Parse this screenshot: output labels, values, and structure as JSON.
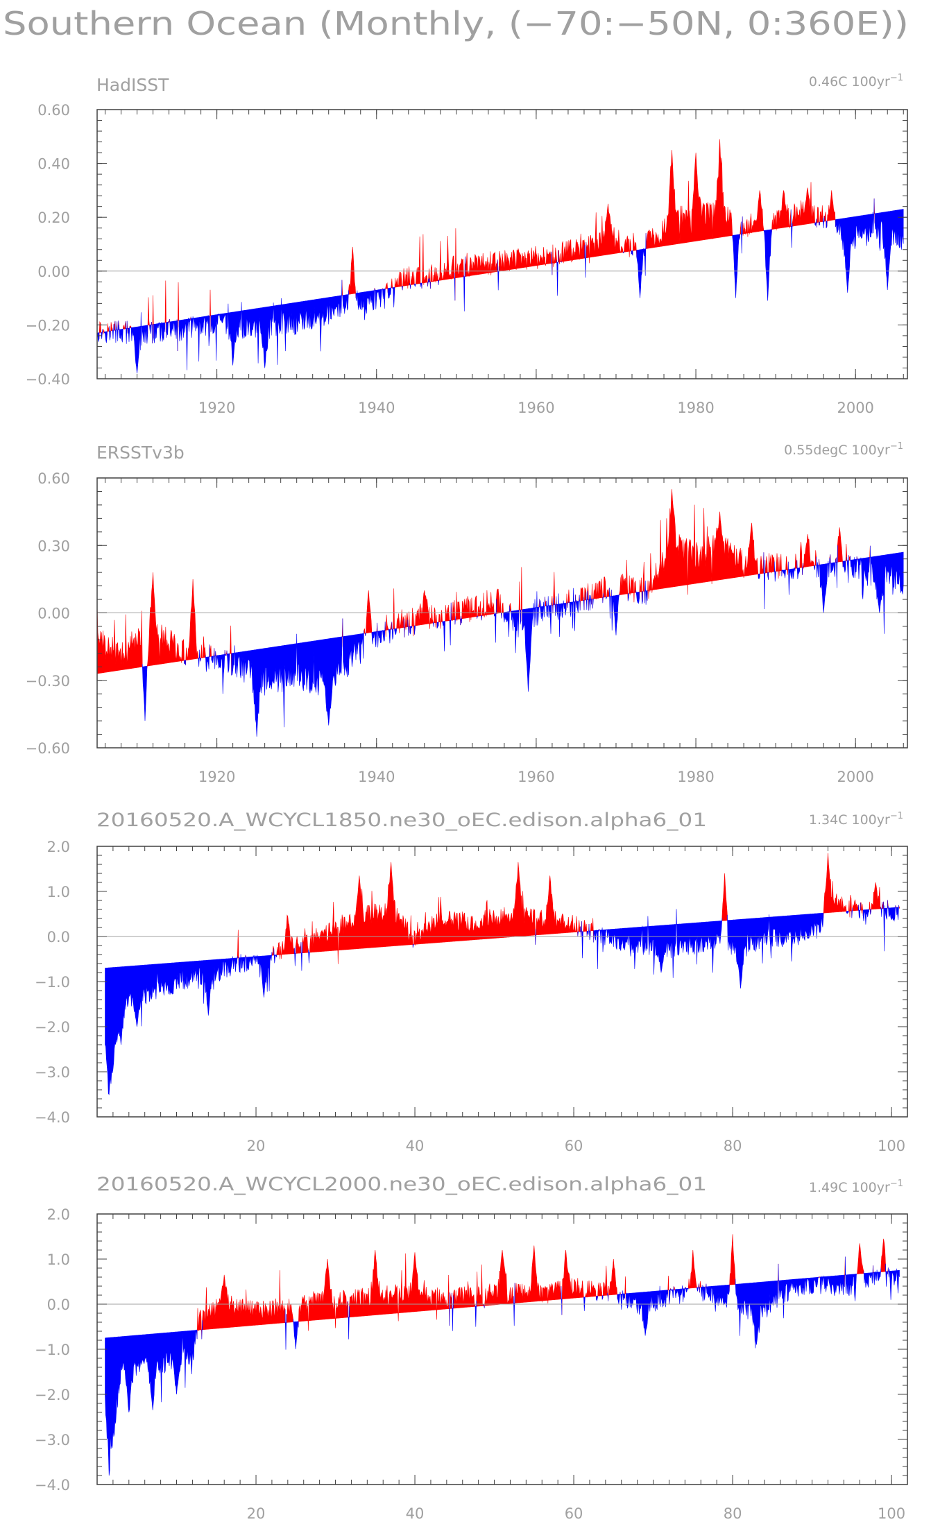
{
  "figure_title": "Southern Ocean (Monthly, (−70:−50N, 0:360E))",
  "colors": {
    "above": "#ff0000",
    "below": "#0000ff",
    "zero_line": "#a0a0a0",
    "axis": "#404040",
    "text": "#a0a0a0"
  },
  "chart_data": [
    {
      "type": "area",
      "title": "HadISST",
      "trend_label": "0.46C  100yr",
      "trend_unit_sup": "−1",
      "x_range": [
        1905,
        2006
      ],
      "xlim": [
        1905,
        2006.5
      ],
      "ylim": [
        -0.4,
        0.6
      ],
      "y_ticks": [
        -0.4,
        -0.2,
        0.0,
        0.2,
        0.4,
        0.6
      ],
      "y_tick_labels": [
        "−0.40",
        "−0.20",
        "0.00",
        "0.20",
        "0.40",
        "0.60"
      ],
      "x_ticks": [
        1920,
        1940,
        1960,
        1980,
        2000
      ],
      "x_tick_labels": [
        "1920",
        "1940",
        "1960",
        "1980",
        "2000"
      ],
      "minor_x_step": 2,
      "minor_y_step": 0.04,
      "trend_line": [
        [
          1905,
          -0.23
        ],
        [
          2006,
          0.23
        ]
      ],
      "anomaly_keypoints": [
        [
          1905,
          -0.22
        ],
        [
          1910,
          -0.23
        ],
        [
          1915,
          -0.22
        ],
        [
          1920,
          -0.2
        ],
        [
          1925,
          -0.21
        ],
        [
          1930,
          -0.19
        ],
        [
          1935,
          -0.15
        ],
        [
          1938,
          -0.12
        ],
        [
          1941,
          -0.1
        ],
        [
          1943,
          -0.03
        ],
        [
          1947,
          -0.02
        ],
        [
          1950,
          0.02
        ],
        [
          1955,
          0.03
        ],
        [
          1960,
          0.05
        ],
        [
          1965,
          0.08
        ],
        [
          1970,
          0.12
        ],
        [
          1972,
          0.1
        ],
        [
          1975,
          0.13
        ],
        [
          1978,
          0.2
        ],
        [
          1980,
          0.21
        ],
        [
          1983,
          0.22
        ],
        [
          1986,
          0.17
        ],
        [
          1990,
          0.18
        ],
        [
          1993,
          0.22
        ],
        [
          1996,
          0.2
        ],
        [
          1999,
          0.12
        ],
        [
          2003,
          0.15
        ],
        [
          2006,
          0.12
        ]
      ],
      "noise_amp": 0.09,
      "spikes": [
        [
          1937,
          0.09
        ],
        [
          1969,
          0.25
        ],
        [
          1977,
          0.45
        ],
        [
          1980,
          0.44
        ],
        [
          1983,
          0.49
        ],
        [
          1988,
          0.3
        ],
        [
          1991,
          0.3
        ],
        [
          1994,
          0.31
        ],
        [
          1997,
          0.3
        ],
        [
          1910,
          -0.38
        ],
        [
          1922,
          -0.35
        ],
        [
          1926,
          -0.36
        ],
        [
          1973,
          -0.1
        ],
        [
          1985,
          -0.1
        ],
        [
          1989,
          -0.11
        ],
        [
          1999,
          -0.08
        ],
        [
          2004,
          -0.07
        ]
      ]
    },
    {
      "type": "area",
      "title": "ERSSTv3b",
      "trend_label": "0.55degC  100yr",
      "trend_unit_sup": "−1",
      "x_range": [
        1905,
        2006
      ],
      "xlim": [
        1905,
        2006.5
      ],
      "ylim": [
        -0.6,
        0.6
      ],
      "y_ticks": [
        -0.6,
        -0.3,
        0.0,
        0.3,
        0.6
      ],
      "y_tick_labels": [
        "−0.60",
        "−0.30",
        "0.00",
        "0.30",
        "0.60"
      ],
      "x_ticks": [
        1920,
        1940,
        1960,
        1980,
        2000
      ],
      "x_tick_labels": [
        "1920",
        "1940",
        "1960",
        "1980",
        "2000"
      ],
      "minor_x_step": 2,
      "minor_y_step": 0.06,
      "trend_line": [
        [
          1905,
          -0.27
        ],
        [
          2006,
          0.27
        ]
      ],
      "anomaly_keypoints": [
        [
          1905,
          -0.12
        ],
        [
          1908,
          -0.2
        ],
        [
          1911,
          -0.08
        ],
        [
          1915,
          -0.15
        ],
        [
          1918,
          -0.2
        ],
        [
          1922,
          -0.22
        ],
        [
          1926,
          -0.3
        ],
        [
          1930,
          -0.28
        ],
        [
          1934,
          -0.32
        ],
        [
          1937,
          -0.2
        ],
        [
          1940,
          -0.1
        ],
        [
          1943,
          -0.05
        ],
        [
          1946,
          -0.02
        ],
        [
          1950,
          0.0
        ],
        [
          1955,
          0.05
        ],
        [
          1958,
          -0.05
        ],
        [
          1960,
          0.0
        ],
        [
          1965,
          0.05
        ],
        [
          1970,
          0.12
        ],
        [
          1974,
          0.1
        ],
        [
          1977,
          0.3
        ],
        [
          1980,
          0.25
        ],
        [
          1983,
          0.3
        ],
        [
          1986,
          0.22
        ],
        [
          1990,
          0.2
        ],
        [
          1994,
          0.22
        ],
        [
          1998,
          0.2
        ],
        [
          2002,
          0.18
        ],
        [
          2006,
          0.12
        ]
      ],
      "noise_amp": 0.13,
      "spikes": [
        [
          1912,
          0.18
        ],
        [
          1917,
          0.15
        ],
        [
          1939,
          0.1
        ],
        [
          1946,
          0.1
        ],
        [
          1977,
          0.55
        ],
        [
          1983,
          0.45
        ],
        [
          1987,
          0.4
        ],
        [
          1994,
          0.35
        ],
        [
          1998,
          0.38
        ],
        [
          1911,
          -0.48
        ],
        [
          1925,
          -0.55
        ],
        [
          1934,
          -0.5
        ],
        [
          1959,
          -0.35
        ],
        [
          1970,
          -0.1
        ],
        [
          1996,
          0.0
        ],
        [
          2003,
          0.0
        ]
      ]
    },
    {
      "type": "area",
      "title": "20160520.A_WCYCL1850.ne30_oEC.edison.alpha6_01",
      "trend_label": "1.34C  100yr",
      "trend_unit_sup": "−1",
      "x_range": [
        1,
        101
      ],
      "xlim": [
        0,
        102
      ],
      "ylim": [
        -4.0,
        2.0
      ],
      "y_ticks": [
        -4.0,
        -3.0,
        -2.0,
        -1.0,
        0.0,
        1.0,
        2.0
      ],
      "y_tick_labels": [
        "−4.0",
        "−3.0",
        "−2.0",
        "−1.0",
        "0.0",
        "1.0",
        "2.0"
      ],
      "x_ticks": [
        20,
        40,
        60,
        80,
        100
      ],
      "x_tick_labels": [
        "20",
        "40",
        "60",
        "80",
        "100"
      ],
      "minor_x_step": 2,
      "minor_y_step": 0.2,
      "trend_line": [
        [
          1,
          -0.7
        ],
        [
          101,
          0.65
        ]
      ],
      "anomaly_keypoints": [
        [
          1,
          -2.2
        ],
        [
          1.5,
          -3.5
        ],
        [
          3,
          -1.5
        ],
        [
          6,
          -1.3
        ],
        [
          9,
          -1.1
        ],
        [
          12,
          -0.9
        ],
        [
          15,
          -0.8
        ],
        [
          18,
          -0.6
        ],
        [
          21,
          -0.5
        ],
        [
          24,
          -0.2
        ],
        [
          27,
          -0.1
        ],
        [
          30,
          0.2
        ],
        [
          33,
          0.45
        ],
        [
          36,
          0.55
        ],
        [
          38,
          0.4
        ],
        [
          40,
          -0.1
        ],
        [
          43,
          0.4
        ],
        [
          46,
          0.3
        ],
        [
          50,
          0.4
        ],
        [
          53,
          0.5
        ],
        [
          56,
          0.4
        ],
        [
          59,
          0.35
        ],
        [
          62,
          0.1
        ],
        [
          65,
          -0.1
        ],
        [
          68,
          -0.2
        ],
        [
          71,
          -0.3
        ],
        [
          75,
          -0.2
        ],
        [
          78,
          -0.1
        ],
        [
          81,
          -0.3
        ],
        [
          84,
          -0.05
        ],
        [
          88,
          0.0
        ],
        [
          91,
          0.2
        ],
        [
          93,
          0.8
        ],
        [
          96,
          0.55
        ],
        [
          99,
          0.6
        ],
        [
          101,
          0.55
        ]
      ],
      "noise_amp": 0.45,
      "spikes": [
        [
          37,
          1.65
        ],
        [
          53,
          1.65
        ],
        [
          33,
          1.35
        ],
        [
          57,
          1.35
        ],
        [
          79,
          1.4
        ],
        [
          92,
          1.85
        ],
        [
          98,
          1.2
        ],
        [
          24,
          0.45
        ],
        [
          3,
          -2.4
        ],
        [
          5,
          -2.0
        ],
        [
          14,
          -1.75
        ],
        [
          21,
          -1.35
        ],
        [
          71,
          -0.8
        ],
        [
          81,
          -1.15
        ]
      ]
    },
    {
      "type": "area",
      "title": "20160520.A_WCYCL2000.ne30_oEC.edison.alpha6_01",
      "trend_label": "1.49C  100yr",
      "trend_unit_sup": "−1",
      "x_range": [
        1,
        101
      ],
      "xlim": [
        0,
        102
      ],
      "ylim": [
        -4.0,
        2.0
      ],
      "y_ticks": [
        -4.0,
        -3.0,
        -2.0,
        -1.0,
        0.0,
        1.0,
        2.0
      ],
      "y_tick_labels": [
        "−4.0",
        "−3.0",
        "−2.0",
        "−1.0",
        "0.0",
        "1.0",
        "2.0"
      ],
      "x_ticks": [
        20,
        40,
        60,
        80,
        100
      ],
      "x_tick_labels": [
        "20",
        "40",
        "60",
        "80",
        "100"
      ],
      "minor_x_step": 2,
      "minor_y_step": 0.2,
      "trend_line": [
        [
          1,
          -0.75
        ],
        [
          101,
          0.75
        ]
      ],
      "anomaly_keypoints": [
        [
          1,
          -2.0
        ],
        [
          1.5,
          -3.6
        ],
        [
          3,
          -1.5
        ],
        [
          6,
          -1.4
        ],
        [
          9,
          -1.3
        ],
        [
          12,
          -1.1
        ],
        [
          13,
          -0.3
        ],
        [
          16,
          0.0
        ],
        [
          20,
          -0.15
        ],
        [
          24,
          -0.1
        ],
        [
          28,
          0.1
        ],
        [
          32,
          0.1
        ],
        [
          36,
          0.2
        ],
        [
          40,
          0.25
        ],
        [
          44,
          0.15
        ],
        [
          48,
          0.2
        ],
        [
          52,
          0.3
        ],
        [
          56,
          0.2
        ],
        [
          60,
          0.4
        ],
        [
          64,
          0.25
        ],
        [
          68,
          -0.05
        ],
        [
          72,
          0.15
        ],
        [
          76,
          0.3
        ],
        [
          80,
          0.0
        ],
        [
          83,
          -0.2
        ],
        [
          86,
          0.2
        ],
        [
          90,
          0.45
        ],
        [
          94,
          0.35
        ],
        [
          98,
          0.55
        ],
        [
          101,
          0.6
        ]
      ],
      "noise_amp": 0.45,
      "spikes": [
        [
          16,
          0.65
        ],
        [
          29,
          1.0
        ],
        [
          35,
          1.2
        ],
        [
          40,
          1.15
        ],
        [
          51,
          1.2
        ],
        [
          55,
          1.3
        ],
        [
          59,
          1.2
        ],
        [
          65,
          1.0
        ],
        [
          75,
          1.2
        ],
        [
          80,
          1.55
        ],
        [
          96,
          1.35
        ],
        [
          99,
          1.45
        ],
        [
          4,
          -2.4
        ],
        [
          7,
          -2.35
        ],
        [
          10,
          -2.0
        ],
        [
          25,
          -1.0
        ],
        [
          69,
          -0.7
        ],
        [
          83,
          -0.9
        ]
      ]
    }
  ]
}
